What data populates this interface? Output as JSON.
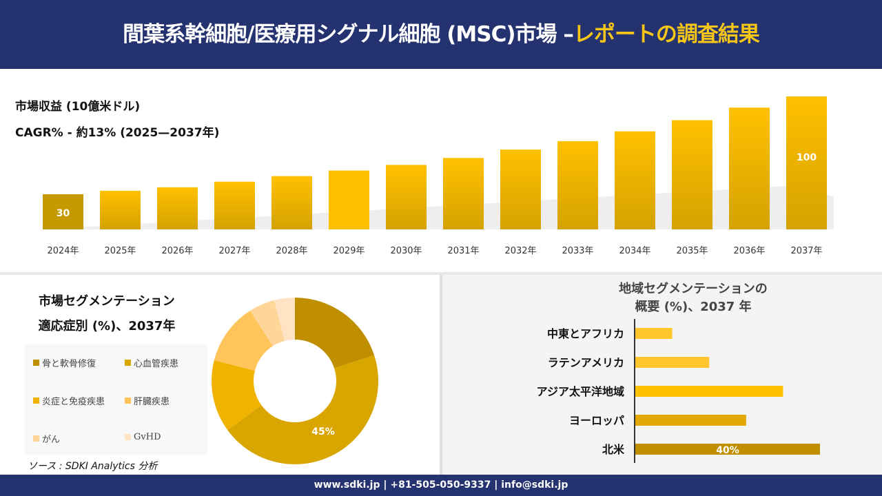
{
  "header": {
    "title_main": "間葉系幹細胞/医療用シグナル細胞 (MSC)市場 –",
    "title_highlight": "レポートの調査結果"
  },
  "colors": {
    "navy": "#253270",
    "gold": "#f5c518"
  },
  "revenue": {
    "label": "市場収益 (10億米ドル)",
    "cagr": "CAGR% - 約13% (2025—2037年)"
  },
  "segmentation": {
    "title_line1": "市場セグメンテーション",
    "title_line2": "適応症別 (%)、2037年"
  },
  "region": {
    "title_line1": "地域セグメンテーションの",
    "title_line2": "概要 (%)、2037 年"
  },
  "source": "ソース : SDKI Analytics 分析",
  "footer": "www.sdki.jp | +81-505-050-9337 | info@sdki.jp",
  "chart_data": [
    {
      "type": "bar",
      "categories": [
        "2024年",
        "2025年",
        "2026年",
        "2027年",
        "2028年",
        "2029年",
        "2030年",
        "2031年",
        "2032年",
        "2033年",
        "2034年",
        "2035年",
        "2036年",
        "2037年"
      ],
      "values": [
        30,
        32.5,
        35,
        39,
        43,
        47,
        51,
        56,
        62,
        68,
        75,
        83,
        92,
        100
      ],
      "data_labels": {
        "0": "30",
        "13": "100"
      },
      "title": "市場収益 (10億米ドル)",
      "grid": false
    },
    {
      "type": "pie",
      "variant": "donut",
      "title": "市場セグメンテーション 適応症別 (%)、2037年",
      "categories": [
        "骨と軟骨修復",
        "心血管疾患",
        "炎症と免疫疾患",
        "肝臓疾患",
        "がん",
        "GvHD"
      ],
      "values": [
        20,
        45,
        14,
        12,
        5,
        4
      ],
      "colors": [
        "#bf8f00",
        "#d9a600",
        "#f0b400",
        "#ffc55a",
        "#ffd699",
        "#ffe3c4"
      ],
      "data_labels": {
        "1": "45%"
      },
      "legend": "left"
    },
    {
      "type": "bar",
      "orientation": "horizontal",
      "title": "地域セグメンテーションの 概要 (%)、2037 年",
      "categories": [
        "中東とアフリカ",
        "ラテンアメリカ",
        "アジア太平洋地域",
        "ヨーロッパ",
        "北米"
      ],
      "values": [
        8,
        16,
        32,
        24,
        40
      ],
      "colors": [
        "#ffc62e",
        "#ffc62e",
        "#ffc000",
        "#e0a800",
        "#bf8f00"
      ],
      "data_labels": {
        "4": "40%"
      }
    }
  ]
}
